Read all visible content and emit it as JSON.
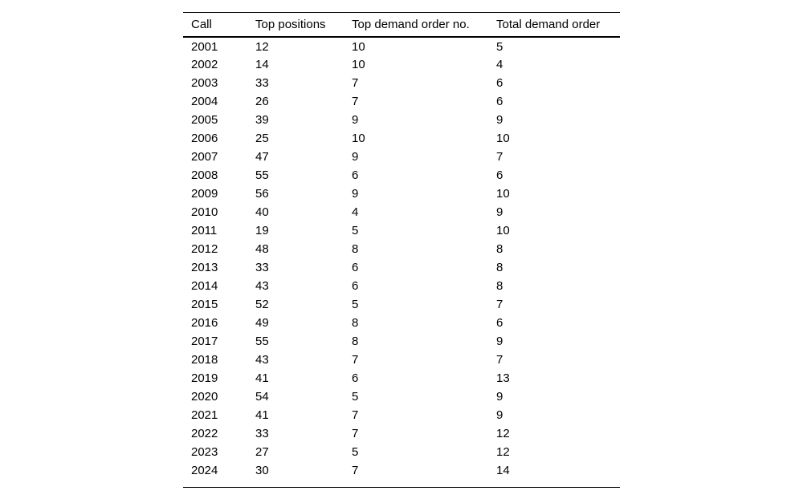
{
  "colors": {
    "background": "#ffffff",
    "text": "#000000",
    "rule": "#000000"
  },
  "table": {
    "columns": [
      "Call",
      "Top positions",
      "Top demand order no.",
      "Total demand order"
    ],
    "rows": [
      [
        "2001",
        "12",
        "10",
        "5"
      ],
      [
        "2002",
        "14",
        "10",
        "4"
      ],
      [
        "2003",
        "33",
        "7",
        "6"
      ],
      [
        "2004",
        "26",
        "7",
        "6"
      ],
      [
        "2005",
        "39",
        "9",
        "9"
      ],
      [
        "2006",
        "25",
        "10",
        "10"
      ],
      [
        "2007",
        "47",
        "9",
        "7"
      ],
      [
        "2008",
        "55",
        "6",
        "6"
      ],
      [
        "2009",
        "56",
        "9",
        "10"
      ],
      [
        "2010",
        "40",
        "4",
        "9"
      ],
      [
        "2011",
        "19",
        "5",
        "10"
      ],
      [
        "2012",
        "48",
        "8",
        "8"
      ],
      [
        "2013",
        "33",
        "6",
        "8"
      ],
      [
        "2014",
        "43",
        "6",
        "8"
      ],
      [
        "2015",
        "52",
        "5",
        "7"
      ],
      [
        "2016",
        "49",
        "8",
        "6"
      ],
      [
        "2017",
        "55",
        "8",
        "9"
      ],
      [
        "2018",
        "43",
        "7",
        "7"
      ],
      [
        "2019",
        "41",
        "6",
        "13"
      ],
      [
        "2020",
        "54",
        "5",
        "9"
      ],
      [
        "2021",
        "41",
        "7",
        "9"
      ],
      [
        "2022",
        "33",
        "7",
        "12"
      ],
      [
        "2023",
        "27",
        "5",
        "12"
      ],
      [
        "2024",
        "30",
        "7",
        "14"
      ]
    ]
  },
  "chart_data": {
    "type": "table",
    "title": "",
    "columns": [
      "Call",
      "Top positions",
      "Top demand order no.",
      "Total demand order"
    ],
    "categories": [
      "2001",
      "2002",
      "2003",
      "2004",
      "2005",
      "2006",
      "2007",
      "2008",
      "2009",
      "2010",
      "2011",
      "2012",
      "2013",
      "2014",
      "2015",
      "2016",
      "2017",
      "2018",
      "2019",
      "2020",
      "2021",
      "2022",
      "2023",
      "2024"
    ],
    "series": [
      {
        "name": "Top positions",
        "values": [
          12,
          14,
          33,
          26,
          39,
          25,
          47,
          55,
          56,
          40,
          19,
          48,
          33,
          43,
          52,
          49,
          55,
          43,
          41,
          54,
          41,
          33,
          27,
          30
        ]
      },
      {
        "name": "Top demand order no.",
        "values": [
          10,
          10,
          7,
          7,
          9,
          10,
          9,
          6,
          9,
          4,
          5,
          8,
          6,
          6,
          5,
          8,
          8,
          7,
          6,
          5,
          7,
          7,
          5,
          7
        ]
      },
      {
        "name": "Total demand order",
        "values": [
          5,
          4,
          6,
          6,
          9,
          10,
          7,
          6,
          10,
          9,
          10,
          8,
          8,
          8,
          7,
          6,
          9,
          7,
          13,
          9,
          9,
          12,
          12,
          14
        ]
      }
    ],
    "layout_hints": {
      "rules": "horizontal only (top, below header, bottom)",
      "alignment": "left",
      "grid": "off"
    }
  }
}
